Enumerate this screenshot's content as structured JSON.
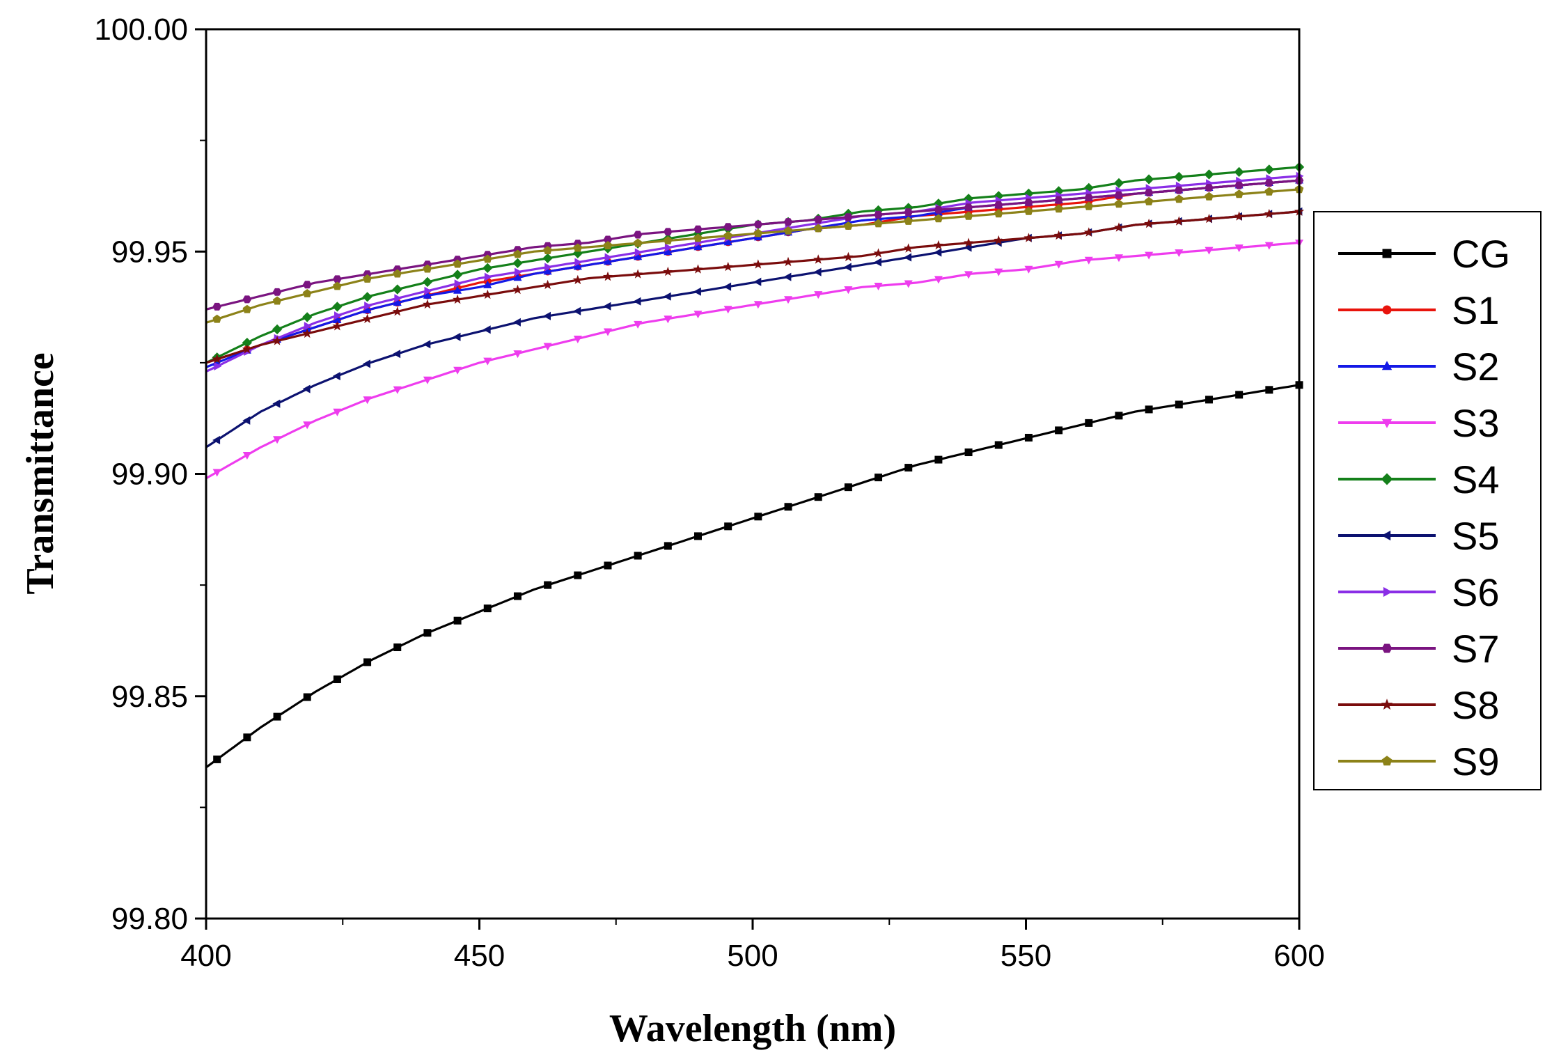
{
  "chart_data": {
    "type": "line",
    "title": "",
    "xlabel": "Wavelength (nm)",
    "ylabel": "Transmittance",
    "xlim": [
      400,
      600
    ],
    "ylim": [
      99.8,
      100.0
    ],
    "xticks": [
      400,
      450,
      500,
      550,
      600
    ],
    "xtick_labels": [
      "400",
      "450",
      "500",
      "550",
      "600"
    ],
    "yticks": [
      99.8,
      99.85,
      99.9,
      99.95,
      100.0
    ],
    "ytick_labels": [
      "99.80",
      "99.85",
      "99.90",
      "99.95",
      "100.00"
    ],
    "grid": false,
    "legend_position": "right",
    "x": [
      400,
      410,
      420,
      430,
      440,
      450,
      460,
      470,
      480,
      490,
      500,
      510,
      520,
      530,
      540,
      550,
      560,
      570,
      580,
      590,
      600
    ],
    "series": [
      {
        "name": "CG",
        "color": "#000000",
        "marker": "square",
        "values": [
          99.834,
          99.843,
          99.851,
          99.858,
          99.864,
          99.869,
          99.874,
          99.878,
          99.882,
          99.886,
          99.89,
          99.894,
          99.898,
          99.902,
          99.905,
          99.908,
          99.911,
          99.914,
          99.916,
          99.918,
          99.92
        ]
      },
      {
        "name": "S1",
        "color": "#e8140c",
        "marker": "circle",
        "values": [
          99.925,
          99.929,
          99.933,
          99.937,
          99.94,
          99.943,
          99.945,
          99.947,
          99.949,
          99.951,
          99.953,
          99.955,
          99.956,
          99.958,
          99.959,
          99.96,
          99.961,
          99.963,
          99.964,
          99.965,
          99.966
        ]
      },
      {
        "name": "S2",
        "color": "#1419e6",
        "marker": "triangle-up",
        "values": [
          99.924,
          99.929,
          99.933,
          99.937,
          99.94,
          99.942,
          99.945,
          99.947,
          99.949,
          99.951,
          99.953,
          99.955,
          99.957,
          99.958,
          99.96,
          99.961,
          99.962,
          99.963,
          99.964,
          99.965,
          99.966
        ]
      },
      {
        "name": "S3",
        "color": "#ee3cee",
        "marker": "triangle-down",
        "values": [
          99.899,
          99.906,
          99.912,
          99.917,
          99.921,
          99.925,
          99.928,
          99.931,
          99.934,
          99.936,
          99.938,
          99.94,
          99.942,
          99.943,
          99.945,
          99.946,
          99.948,
          99.949,
          99.95,
          99.951,
          99.952
        ]
      },
      {
        "name": "S4",
        "color": "#14801a",
        "marker": "diamond",
        "values": [
          99.925,
          99.931,
          99.936,
          99.94,
          99.943,
          99.946,
          99.948,
          99.95,
          99.952,
          99.954,
          99.956,
          99.957,
          99.959,
          99.96,
          99.962,
          99.963,
          99.964,
          99.966,
          99.967,
          99.968,
          99.969
        ]
      },
      {
        "name": "S5",
        "color": "#0c1270",
        "marker": "triangle-left",
        "values": [
          99.906,
          99.914,
          99.92,
          99.925,
          99.929,
          99.932,
          99.935,
          99.937,
          99.939,
          99.941,
          99.943,
          99.945,
          99.947,
          99.949,
          99.951,
          99.953,
          99.954,
          99.956,
          99.957,
          99.958,
          99.959
        ]
      },
      {
        "name": "S6",
        "color": "#8a2ee6",
        "marker": "triangle-right",
        "values": [
          99.923,
          99.929,
          99.934,
          99.938,
          99.941,
          99.944,
          99.946,
          99.948,
          99.95,
          99.952,
          99.954,
          99.956,
          99.958,
          99.959,
          99.961,
          99.962,
          99.963,
          99.964,
          99.965,
          99.966,
          99.967
        ]
      },
      {
        "name": "S7",
        "color": "#7a1480",
        "marker": "hexagon",
        "values": [
          99.937,
          99.94,
          99.943,
          99.945,
          99.947,
          99.949,
          99.951,
          99.952,
          99.954,
          99.955,
          99.956,
          99.957,
          99.958,
          99.959,
          99.96,
          99.961,
          99.962,
          99.963,
          99.964,
          99.965,
          99.966
        ]
      },
      {
        "name": "S8",
        "color": "#7a0c0c",
        "marker": "star",
        "values": [
          99.925,
          99.929,
          99.932,
          99.935,
          99.938,
          99.94,
          99.942,
          99.944,
          99.945,
          99.946,
          99.947,
          99.948,
          99.949,
          99.951,
          99.952,
          99.953,
          99.954,
          99.956,
          99.957,
          99.958,
          99.959
        ]
      },
      {
        "name": "S9",
        "color": "#8c8218",
        "marker": "pentagon",
        "values": [
          99.934,
          99.938,
          99.941,
          99.944,
          99.946,
          99.948,
          99.95,
          99.951,
          99.952,
          99.953,
          99.954,
          99.955,
          99.956,
          99.957,
          99.958,
          99.959,
          99.96,
          99.961,
          99.962,
          99.963,
          99.964
        ]
      }
    ]
  }
}
